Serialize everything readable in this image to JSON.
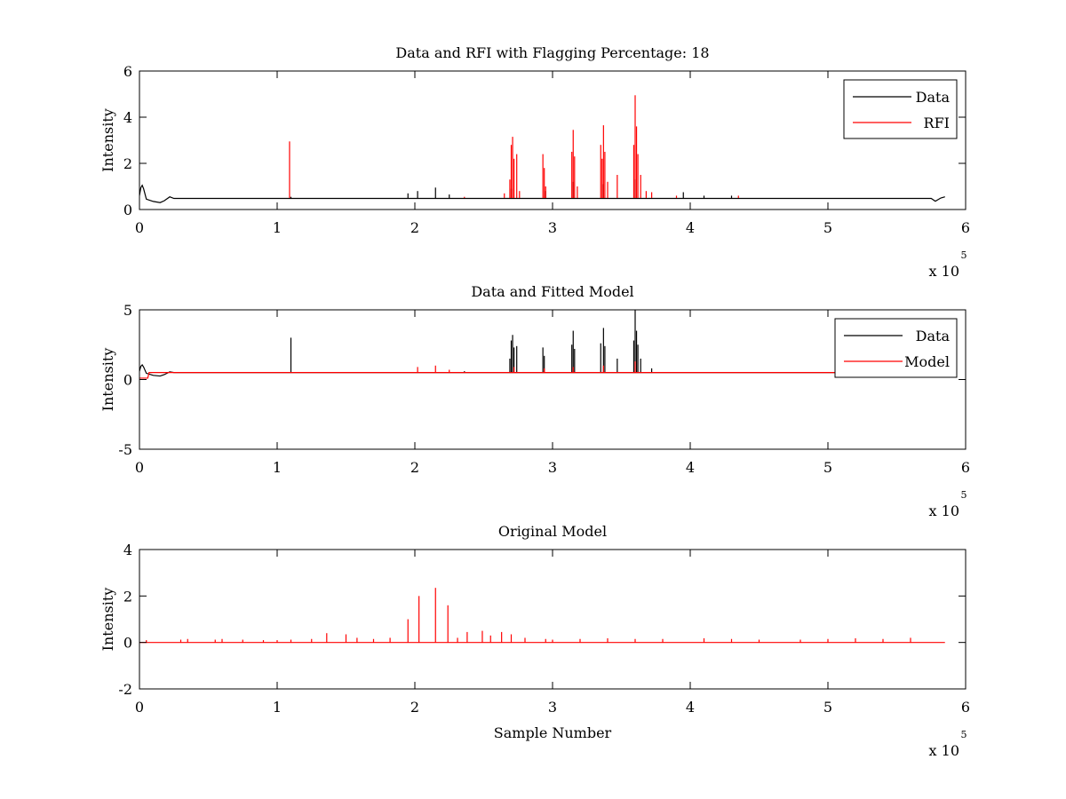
{
  "colors": {
    "data": "#000000",
    "rfi": "#ff0000",
    "model": "#ff0000"
  },
  "chart_data": [
    {
      "type": "line",
      "title": "Data and RFI with Flagging Percentage: 18",
      "xlabel": "",
      "ylabel": "Intensity",
      "xlim": [
        0,
        6
      ],
      "ylim": [
        0,
        6
      ],
      "xticks": [
        0,
        1,
        2,
        3,
        4,
        5,
        6
      ],
      "yticks": [
        0,
        2,
        4,
        6
      ],
      "x_multiplier_base": "x 10",
      "x_multiplier_exp": "5",
      "legend": {
        "placement": "top-right",
        "entries": [
          "Data",
          "RFI"
        ]
      },
      "baseline": 0.5,
      "series": [
        {
          "name": "Data",
          "color": "black",
          "curve": [
            [
              0,
              0.6
            ],
            [
              0.01,
              0.95
            ],
            [
              0.02,
              1.05
            ],
            [
              0.03,
              0.9
            ],
            [
              0.05,
              0.45
            ],
            [
              0.1,
              0.35
            ],
            [
              0.15,
              0.3
            ],
            [
              0.18,
              0.38
            ],
            [
              0.22,
              0.55
            ],
            [
              0.25,
              0.48
            ],
            [
              5.75,
              0.48
            ],
            [
              5.78,
              0.36
            ],
            [
              5.82,
              0.5
            ],
            [
              5.85,
              0.55
            ]
          ],
          "spikes": [
            [
              1.1,
              0.55
            ],
            [
              1.95,
              0.7
            ],
            [
              2.02,
              0.8
            ],
            [
              2.15,
              0.95
            ],
            [
              2.25,
              0.65
            ],
            [
              2.7,
              0.9
            ],
            [
              2.95,
              0.8
            ],
            [
              3.15,
              1.2
            ],
            [
              3.37,
              1.1
            ],
            [
              3.6,
              1.3
            ],
            [
              3.95,
              0.75
            ],
            [
              4.1,
              0.6
            ],
            [
              4.3,
              0.6
            ]
          ]
        },
        {
          "name": "RFI",
          "color": "red",
          "spikes": [
            [
              1.09,
              2.95
            ],
            [
              2.36,
              0.55
            ],
            [
              2.65,
              0.7
            ],
            [
              2.69,
              1.3
            ],
            [
              2.7,
              2.8
            ],
            [
              2.71,
              3.15
            ],
            [
              2.72,
              2.2
            ],
            [
              2.74,
              2.4
            ],
            [
              2.76,
              0.8
            ],
            [
              2.93,
              2.4
            ],
            [
              2.94,
              1.8
            ],
            [
              2.95,
              1.0
            ],
            [
              3.14,
              2.5
            ],
            [
              3.15,
              3.45
            ],
            [
              3.16,
              2.3
            ],
            [
              3.18,
              1.0
            ],
            [
              3.35,
              2.8
            ],
            [
              3.36,
              2.2
            ],
            [
              3.37,
              3.65
            ],
            [
              3.38,
              2.5
            ],
            [
              3.4,
              1.2
            ],
            [
              3.47,
              1.5
            ],
            [
              3.59,
              2.8
            ],
            [
              3.6,
              4.95
            ],
            [
              3.61,
              3.6
            ],
            [
              3.62,
              2.4
            ],
            [
              3.64,
              1.5
            ],
            [
              3.68,
              0.8
            ],
            [
              3.72,
              0.75
            ],
            [
              3.9,
              0.6
            ],
            [
              4.35,
              0.6
            ]
          ]
        }
      ]
    },
    {
      "type": "line",
      "title": "Data and Fitted Model",
      "xlabel": "",
      "ylabel": "Intensity",
      "xlim": [
        0,
        6
      ],
      "ylim": [
        -5,
        5
      ],
      "xticks": [
        0,
        1,
        2,
        3,
        4,
        5,
        6
      ],
      "yticks": [
        -5,
        0,
        5
      ],
      "x_multiplier_base": "x 10",
      "x_multiplier_exp": "5",
      "legend": {
        "placement": "top-right",
        "entries": [
          "Data",
          "Model"
        ]
      },
      "baseline": 0.5,
      "series": [
        {
          "name": "Data",
          "color": "black",
          "curve": [
            [
              0,
              0.6
            ],
            [
              0.01,
              0.95
            ],
            [
              0.02,
              1.05
            ],
            [
              0.03,
              0.9
            ],
            [
              0.05,
              0.45
            ],
            [
              0.1,
              0.3
            ],
            [
              0.15,
              0.25
            ],
            [
              0.18,
              0.35
            ],
            [
              0.22,
              0.55
            ],
            [
              0.25,
              0.5
            ],
            [
              5.85,
              0.5
            ]
          ],
          "spikes": [
            [
              1.1,
              3.0
            ],
            [
              2.36,
              0.6
            ],
            [
              2.69,
              1.5
            ],
            [
              2.7,
              2.8
            ],
            [
              2.71,
              3.2
            ],
            [
              2.72,
              2.3
            ],
            [
              2.74,
              2.4
            ],
            [
              2.93,
              2.3
            ],
            [
              2.94,
              1.7
            ],
            [
              3.14,
              2.5
            ],
            [
              3.15,
              3.5
            ],
            [
              3.16,
              2.2
            ],
            [
              3.35,
              2.6
            ],
            [
              3.37,
              3.7
            ],
            [
              3.38,
              2.4
            ],
            [
              3.47,
              1.5
            ],
            [
              3.59,
              2.8
            ],
            [
              3.6,
              5.0
            ],
            [
              3.61,
              3.5
            ],
            [
              3.62,
              2.5
            ],
            [
              3.64,
              1.5
            ],
            [
              3.72,
              0.8
            ]
          ]
        },
        {
          "name": "Model",
          "color": "red",
          "curve": [
            [
              0,
              0.1
            ],
            [
              0.06,
              0.1
            ],
            [
              0.07,
              0.5
            ],
            [
              5.85,
              0.5
            ]
          ],
          "spikes": [
            [
              2.02,
              0.9
            ],
            [
              2.15,
              1.0
            ],
            [
              2.25,
              0.7
            ],
            [
              2.72,
              0.9
            ],
            [
              2.94,
              0.8
            ],
            [
              3.15,
              0.9
            ],
            [
              3.37,
              1.0
            ],
            [
              3.6,
              1.3
            ]
          ]
        }
      ]
    },
    {
      "type": "line",
      "title": "Original Model",
      "xlabel": "Sample Number",
      "ylabel": "Intensity",
      "xlim": [
        0,
        6
      ],
      "ylim": [
        -2,
        4
      ],
      "xticks": [
        0,
        1,
        2,
        3,
        4,
        5,
        6
      ],
      "yticks": [
        -2,
        0,
        2,
        4
      ],
      "x_multiplier_base": "x 10",
      "x_multiplier_exp": "5",
      "baseline": 0,
      "series": [
        {
          "name": "",
          "color": "red",
          "curve": [
            [
              0,
              0
            ],
            [
              5.85,
              0
            ]
          ],
          "spikes": [
            [
              0.05,
              0.1
            ],
            [
              0.3,
              0.12
            ],
            [
              0.35,
              0.15
            ],
            [
              0.55,
              0.12
            ],
            [
              0.6,
              0.15
            ],
            [
              0.75,
              0.12
            ],
            [
              0.9,
              0.1
            ],
            [
              1.0,
              0.1
            ],
            [
              1.1,
              0.12
            ],
            [
              1.25,
              0.15
            ],
            [
              1.36,
              0.4
            ],
            [
              1.5,
              0.35
            ],
            [
              1.58,
              0.2
            ],
            [
              1.7,
              0.15
            ],
            [
              1.82,
              0.2
            ],
            [
              1.95,
              1.0
            ],
            [
              2.03,
              2.0
            ],
            [
              2.15,
              2.35
            ],
            [
              2.24,
              1.6
            ],
            [
              2.31,
              0.2
            ],
            [
              2.38,
              0.45
            ],
            [
              2.49,
              0.5
            ],
            [
              2.55,
              0.3
            ],
            [
              2.63,
              0.45
            ],
            [
              2.7,
              0.35
            ],
            [
              2.8,
              0.2
            ],
            [
              2.95,
              0.15
            ],
            [
              3.0,
              0.12
            ],
            [
              3.2,
              0.15
            ],
            [
              3.4,
              0.18
            ],
            [
              3.6,
              0.15
            ],
            [
              3.8,
              0.15
            ],
            [
              4.1,
              0.18
            ],
            [
              4.3,
              0.15
            ],
            [
              4.5,
              0.12
            ],
            [
              4.8,
              0.12
            ],
            [
              5.0,
              0.15
            ],
            [
              5.2,
              0.18
            ],
            [
              5.4,
              0.15
            ],
            [
              5.6,
              0.2
            ]
          ]
        }
      ]
    }
  ]
}
